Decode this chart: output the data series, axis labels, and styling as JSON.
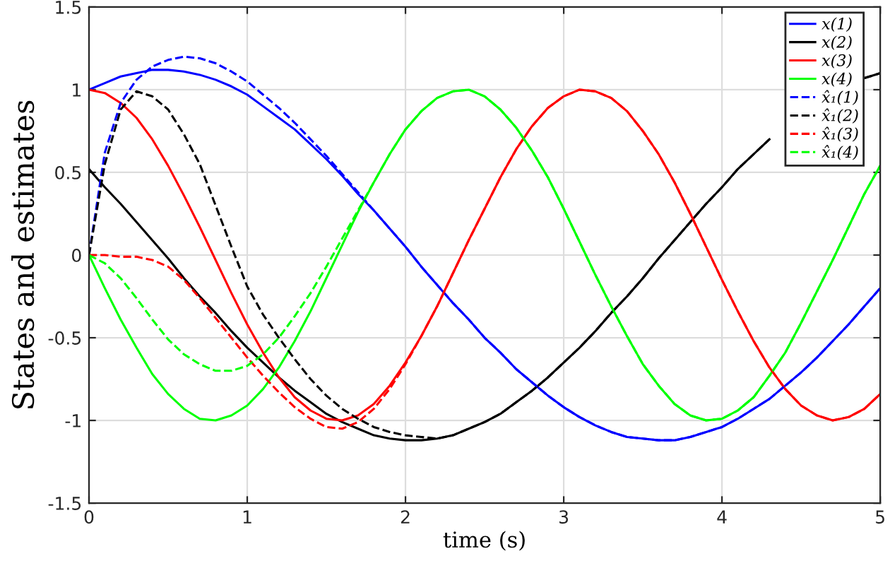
{
  "chart_data": {
    "type": "line",
    "xlabel": "time (s)",
    "ylabel": "States and estimates",
    "x": [
      0,
      0.1,
      0.2,
      0.3,
      0.4,
      0.5,
      0.6,
      0.7,
      0.8,
      0.9,
      1,
      1.1,
      1.2,
      1.3,
      1.4,
      1.5,
      1.6,
      1.7,
      1.8,
      1.9,
      2,
      2.1,
      2.2,
      2.3,
      2.4,
      2.5,
      2.6,
      2.7,
      2.8,
      2.9,
      3,
      3.1,
      3.2,
      3.3,
      3.4,
      3.5,
      3.6,
      3.7,
      3.8,
      3.9,
      4,
      4.1,
      4.2,
      4.3,
      4.4,
      4.5,
      4.6,
      4.7,
      4.8,
      4.9,
      5
    ],
    "series": [
      {
        "name": "x(1)",
        "color": "#0000ff",
        "line_style": "solid",
        "values": [
          1.0,
          1.04,
          1.08,
          1.1,
          1.12,
          1.12,
          1.11,
          1.09,
          1.06,
          1.02,
          0.97,
          0.9,
          0.83,
          0.76,
          0.67,
          0.58,
          0.48,
          0.37,
          0.27,
          0.16,
          0.05,
          -0.07,
          -0.18,
          -0.29,
          -0.39,
          -0.5,
          -0.59,
          -0.69,
          -0.77,
          -0.85,
          -0.92,
          -0.98,
          -1.03,
          -1.07,
          -1.1,
          -1.11,
          -1.12,
          -1.12,
          -1.1,
          -1.07,
          -1.04,
          -0.99,
          -0.93,
          -0.87,
          -0.79,
          -0.71,
          -0.62,
          -0.52,
          -0.42,
          -0.31,
          -0.2
        ]
      },
      {
        "name": "x(2)",
        "color": "#000000",
        "line_style": "solid",
        "values": [
          0.52,
          0.41,
          0.31,
          0.2,
          0.09,
          -0.02,
          -0.14,
          -0.25,
          -0.35,
          -0.46,
          -0.56,
          -0.65,
          -0.74,
          -0.82,
          -0.89,
          -0.96,
          -1.01,
          -1.05,
          -1.09,
          -1.11,
          -1.12,
          -1.12,
          -1.11,
          -1.09,
          -1.05,
          -1.01,
          -0.96,
          -0.89,
          -0.82,
          -0.74,
          -0.65,
          -0.56,
          -0.46,
          -0.35,
          -0.25,
          -0.14,
          -0.02,
          0.09,
          0.2,
          0.31,
          0.41,
          0.52,
          0.61,
          0.7,
          null,
          null,
          null,
          null,
          null,
          1.07,
          1.1
        ]
      },
      {
        "name": "x(3)",
        "color": "#ff0000",
        "line_style": "solid",
        "values": [
          1.0,
          0.98,
          0.92,
          0.83,
          0.7,
          0.54,
          0.36,
          0.17,
          -0.03,
          -0.23,
          -0.42,
          -0.59,
          -0.74,
          -0.86,
          -0.94,
          -0.99,
          -1.0,
          -0.97,
          -0.9,
          -0.79,
          -0.65,
          -0.49,
          -0.31,
          -0.11,
          0.09,
          0.28,
          0.47,
          0.64,
          0.78,
          0.89,
          0.96,
          1.0,
          0.99,
          0.95,
          0.87,
          0.75,
          0.61,
          0.44,
          0.25,
          0.05,
          -0.15,
          -0.34,
          -0.52,
          -0.68,
          -0.81,
          -0.91,
          -0.97,
          -1.0,
          -0.98,
          -0.93,
          -0.84
        ]
      },
      {
        "name": "x(4)",
        "color": "#00ff00",
        "line_style": "solid",
        "values": [
          0,
          -0.2,
          -0.39,
          -0.56,
          -0.72,
          -0.84,
          -0.93,
          -0.99,
          -1.0,
          -0.97,
          -0.91,
          -0.81,
          -0.68,
          -0.52,
          -0.34,
          -0.14,
          0.06,
          0.26,
          0.44,
          0.61,
          0.76,
          0.87,
          0.95,
          0.99,
          1.0,
          0.96,
          0.88,
          0.77,
          0.63,
          0.47,
          0.28,
          0.08,
          -0.12,
          -0.31,
          -0.49,
          -0.66,
          -0.79,
          -0.9,
          -0.97,
          -1.0,
          -0.99,
          -0.94,
          -0.86,
          -0.73,
          -0.59,
          -0.41,
          -0.22,
          -0.03,
          0.17,
          0.37,
          0.54
        ]
      },
      {
        "name": "x̂₁(1)",
        "color": "#0000ff",
        "line_style": "dashed",
        "values": [
          0,
          0.62,
          0.92,
          1.06,
          1.14,
          1.18,
          1.2,
          1.19,
          1.16,
          1.11,
          1.05,
          0.97,
          0.89,
          0.8,
          0.7,
          0.6,
          0.49,
          0.38,
          0.27,
          0.16,
          0.05,
          -0.07,
          -0.18,
          -0.29,
          -0.39,
          -0.5,
          -0.59,
          -0.69,
          -0.77,
          -0.85,
          -0.92,
          -0.98,
          -1.03,
          -1.07,
          -1.1,
          -1.11,
          -1.12,
          -1.12,
          -1.1,
          -1.07,
          -1.04,
          -0.99,
          -0.93,
          -0.87,
          -0.79,
          -0.71,
          -0.62,
          -0.52,
          -0.42,
          -0.31,
          -0.2
        ]
      },
      {
        "name": "x̂₁(2)",
        "color": "#000000",
        "line_style": "dashed",
        "values": [
          0,
          0.55,
          0.88,
          0.99,
          0.96,
          0.88,
          0.73,
          0.55,
          0.3,
          0.05,
          -0.19,
          -0.36,
          -0.5,
          -0.63,
          -0.75,
          -0.85,
          -0.93,
          -0.99,
          -1.04,
          -1.07,
          -1.09,
          -1.1,
          -1.11,
          -1.09,
          -1.05,
          -1.01,
          -0.96,
          -0.89,
          -0.82,
          -0.74,
          -0.65,
          -0.56,
          -0.46,
          -0.35,
          -0.25,
          -0.14,
          -0.02,
          0.09,
          0.2,
          0.31,
          0.41,
          0.52,
          0.61,
          0.7,
          null,
          null,
          null,
          null,
          null,
          1.07,
          1.1
        ]
      },
      {
        "name": "x̂₁(3)",
        "color": "#ff0000",
        "line_style": "dashed",
        "values": [
          0,
          0,
          -0.01,
          -0.01,
          -0.03,
          -0.07,
          -0.15,
          -0.26,
          -0.38,
          -0.5,
          -0.62,
          -0.73,
          -0.83,
          -0.92,
          -0.99,
          -1.04,
          -1.05,
          -1.01,
          -0.93,
          -0.81,
          -0.66,
          -0.49,
          -0.31,
          -0.11,
          0.09,
          0.28,
          0.47,
          0.64,
          0.78,
          0.89,
          0.96,
          1.0,
          0.99,
          0.95,
          0.87,
          0.75,
          0.61,
          0.44,
          0.25,
          0.05,
          -0.15,
          -0.34,
          -0.52,
          -0.68,
          -0.81,
          -0.91,
          -0.97,
          -1.0,
          -0.98,
          -0.93,
          -0.84
        ]
      },
      {
        "name": "x̂₁(4)",
        "color": "#00ff00",
        "line_style": "dashed",
        "values": [
          0,
          -0.05,
          -0.14,
          -0.26,
          -0.39,
          -0.51,
          -0.6,
          -0.66,
          -0.7,
          -0.7,
          -0.67,
          -0.6,
          -0.5,
          -0.37,
          -0.23,
          -0.07,
          0.1,
          0.27,
          0.44,
          0.61,
          0.76,
          0.87,
          0.95,
          0.99,
          1.0,
          0.96,
          0.88,
          0.77,
          0.63,
          0.47,
          0.28,
          0.08,
          -0.12,
          -0.31,
          -0.49,
          -0.66,
          -0.79,
          -0.9,
          -0.97,
          -1.0,
          -0.99,
          -0.94,
          -0.86,
          -0.73,
          -0.59,
          -0.41,
          -0.22,
          -0.03,
          0.17,
          0.37,
          0.54
        ]
      }
    ],
    "xlim": [
      0,
      5
    ],
    "xticks": [
      0,
      1,
      2,
      3,
      4,
      5
    ],
    "ylim": [
      -1.5,
      1.5
    ],
    "yticks": [
      -1.5,
      -1,
      -0.5,
      0,
      0.5,
      1,
      1.5
    ],
    "grid": true,
    "legend": "top right",
    "marker": "none"
  }
}
